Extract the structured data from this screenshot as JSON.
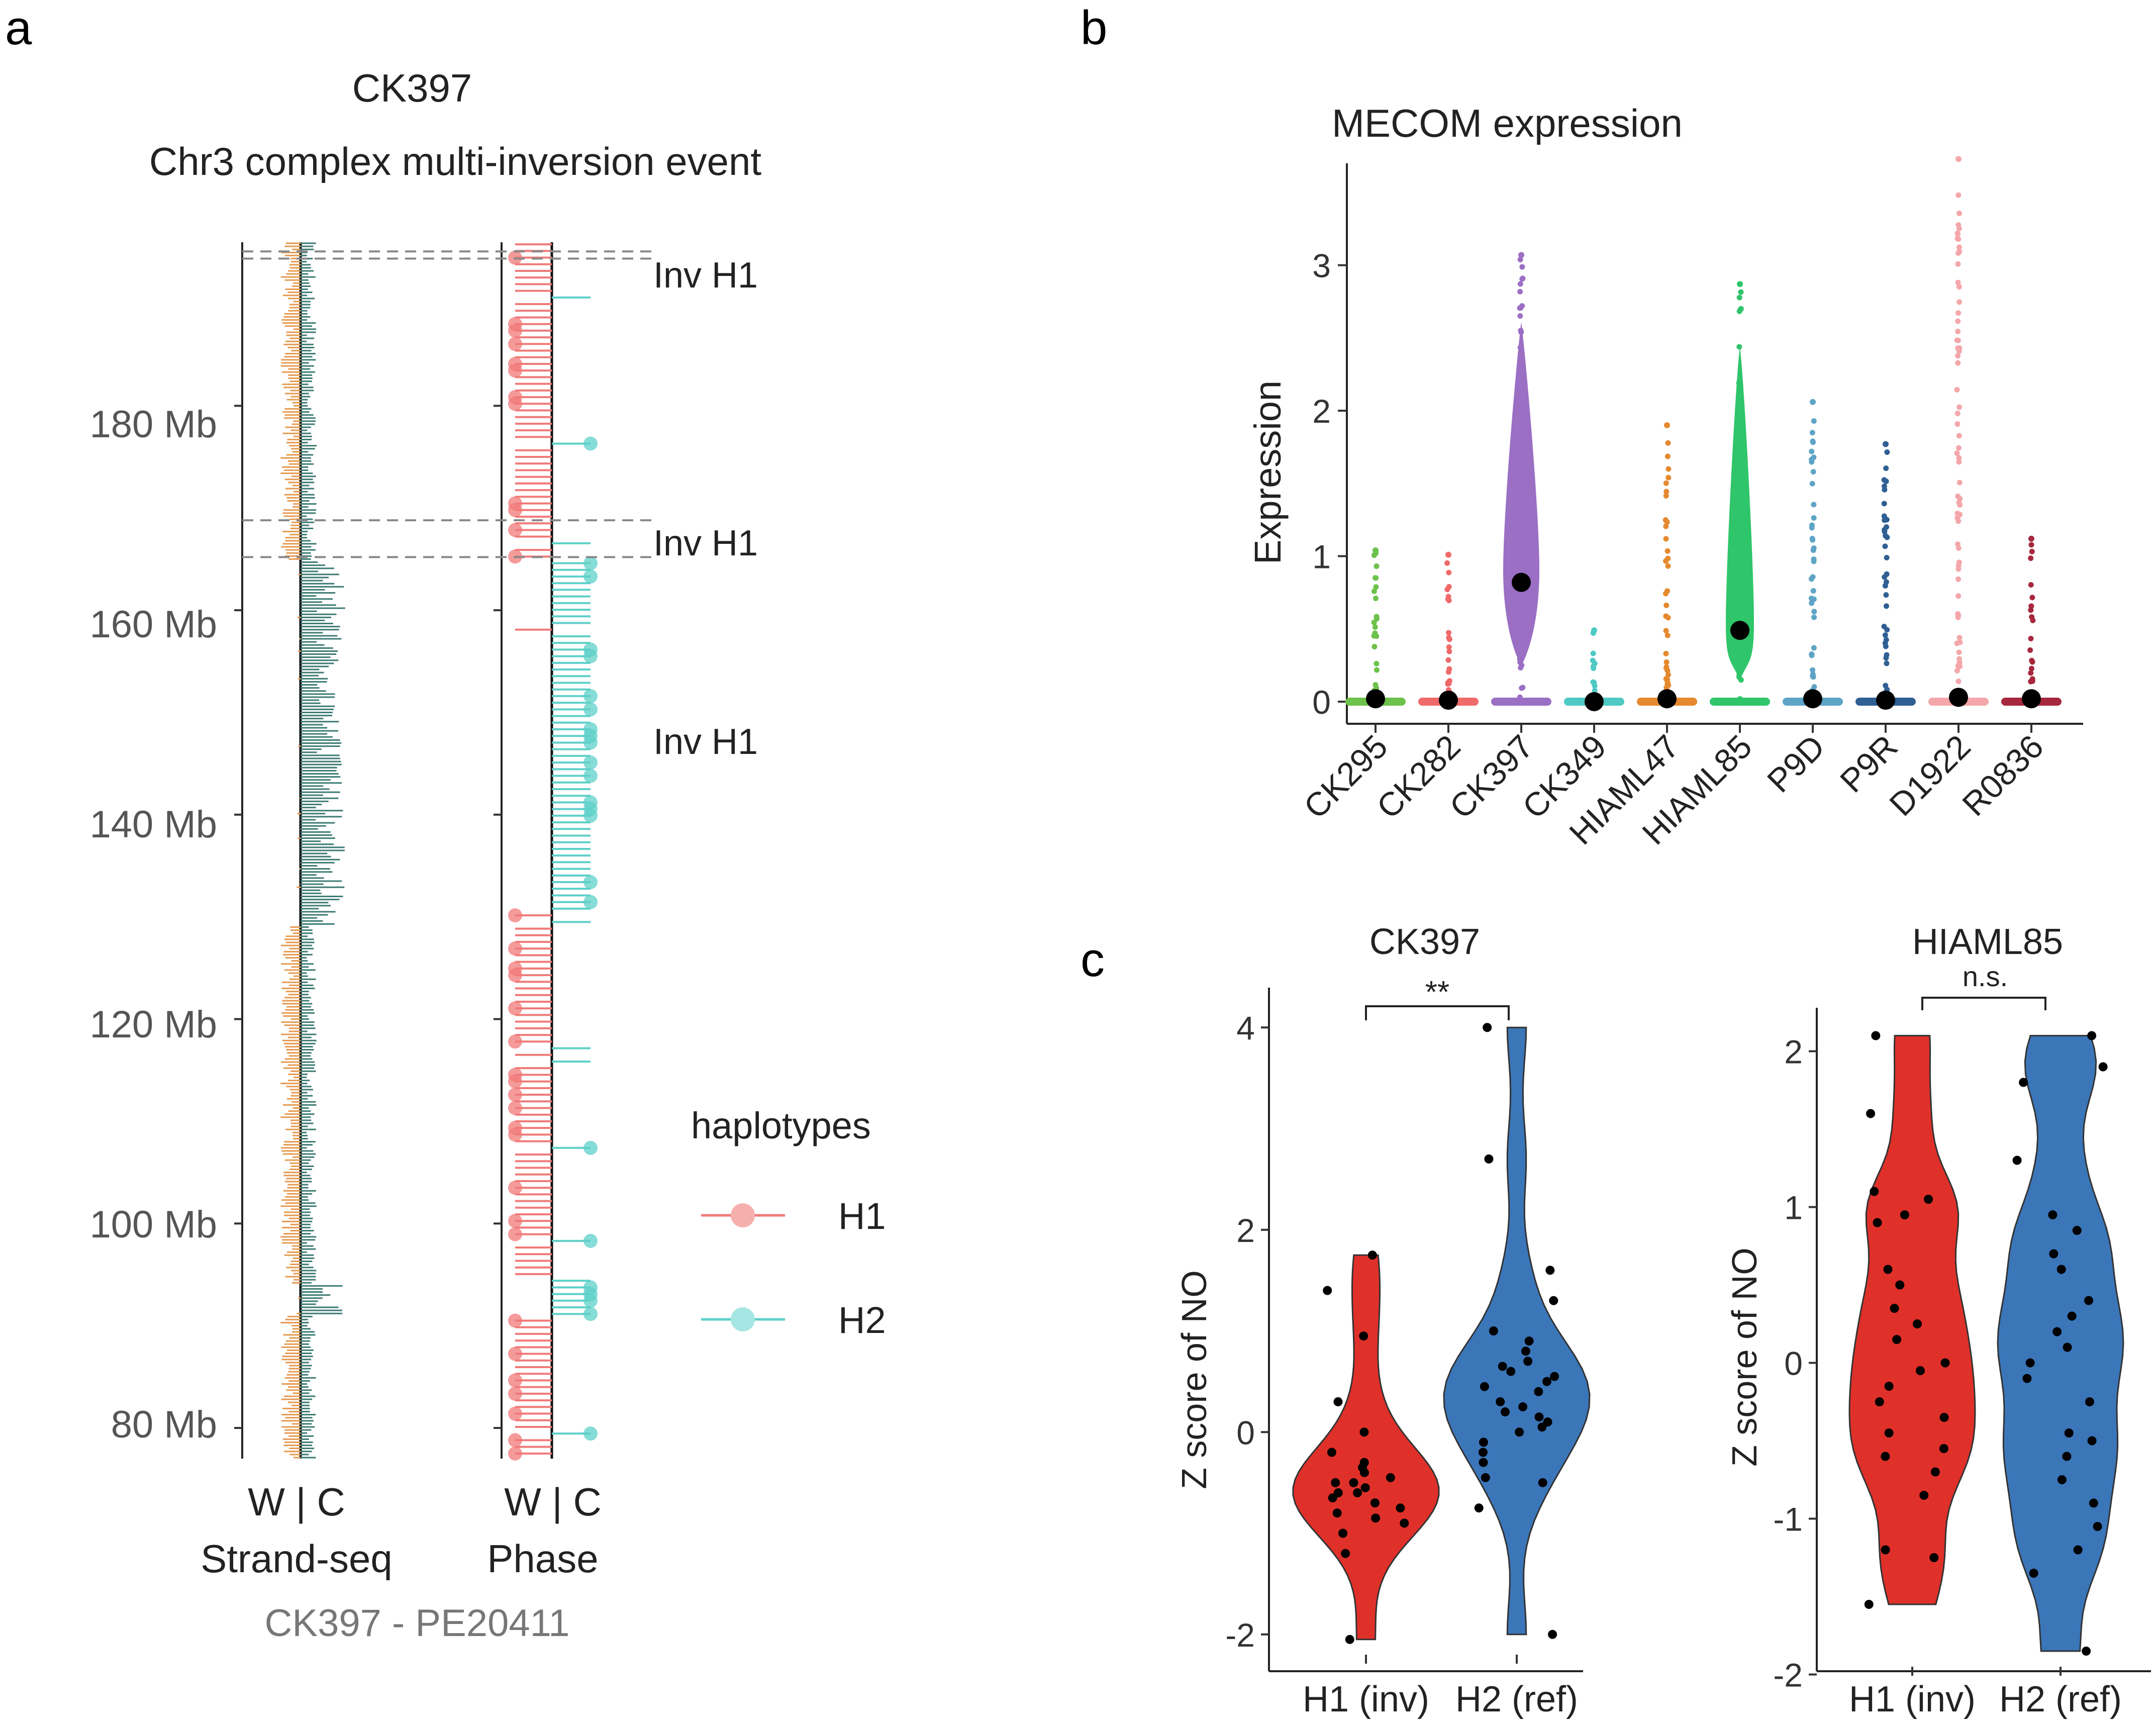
{
  "panels": {
    "a": "a",
    "b": "b",
    "c": "c"
  },
  "panel_a": {
    "title_line1": "CK397",
    "title_line2": "Chr3 complex multi-inversion event",
    "y_ticks": [
      "180 Mb",
      "160 Mb",
      "140 Mb",
      "120 Mb",
      "100 Mb",
      "80 Mb"
    ],
    "track_labels": [
      "W | C",
      "W | C"
    ],
    "track_names": [
      "Strand-seq",
      "Phase"
    ],
    "inv_labels": [
      "Inv H1",
      "Inv H1",
      "Inv H1"
    ],
    "caption": "CK397 - PE20411",
    "legend_title": "haplotypes",
    "legend_items": [
      "H1",
      "H2"
    ]
  },
  "chart_data": [
    {
      "type": "ideogram",
      "panel": "a",
      "ylim_mb": [
        77,
        196
      ],
      "y_ticks_mb": [
        180,
        160,
        140,
        120,
        100,
        80
      ],
      "inversions_mb": [
        [
          194.4,
          195.1
        ],
        [
          165.2,
          168.8
        ]
      ],
      "h1_segments_mb": [
        [
          77,
          91
        ],
        [
          94,
          129
        ],
        [
          165,
          196
        ]
      ],
      "h2_segments_mb": [
        [
          91,
          94
        ],
        [
          129,
          165
        ]
      ],
      "colors": {
        "watson": "#e59a50",
        "crick": "#3e7b74",
        "H1": "#f07a78",
        "H2": "#5ed0c8"
      }
    },
    {
      "type": "scatter",
      "panel": "b",
      "title": "MECOM expression",
      "ylabel": "Expression",
      "ylim": [
        0,
        3.7
      ],
      "y_ticks": [
        "0",
        "1",
        "2",
        "3"
      ],
      "categories": [
        "CK295",
        "CK282",
        "CK397",
        "CK349",
        "HIAML47",
        "HIAML85",
        "P9D",
        "P9R",
        "D1922",
        "R0836"
      ],
      "means": [
        0.02,
        0.01,
        0.82,
        0.0,
        0.02,
        0.49,
        0.02,
        0.01,
        0.03,
        0.02
      ],
      "max_values": [
        1.04,
        1.01,
        3.07,
        0.49,
        1.9,
        2.87,
        2.06,
        1.77,
        3.73,
        1.12
      ],
      "colors": [
        "#6cc24a",
        "#f06a6a",
        "#9b6fc4",
        "#4fc9c4",
        "#e5892e",
        "#2fc56a",
        "#5ea4c6",
        "#2f5f93",
        "#f4a7aa",
        "#a6283e"
      ]
    },
    {
      "type": "violin",
      "panel": "c",
      "title": "CK397",
      "ylabel": "Z score of NO",
      "ylim": [
        -2.2,
        4.2
      ],
      "y_ticks": [
        "-2",
        "0",
        "2",
        "4"
      ],
      "categories": [
        "H1 (inv)",
        "H2 (ref)"
      ],
      "significance": "**",
      "points": [
        [
          -0.5,
          -0.6,
          -0.8,
          -0.7,
          -0.45,
          -0.9,
          -0.3,
          -1.0,
          -0.2,
          -0.55,
          -0.65,
          0.0,
          0.3,
          1.4,
          1.75,
          0.95,
          -1.2,
          -2.05,
          -0.35,
          -0.75,
          -0.6,
          -0.85,
          -0.5,
          -0.4
        ],
        [
          0.4,
          0.2,
          0.1,
          0.6,
          -0.2,
          0.8,
          1.3,
          0.5,
          -0.5,
          0.9,
          1.0,
          2.7,
          4.0,
          0.3,
          -0.1,
          -0.3,
          0.7,
          0.0,
          -2.0,
          0.55,
          -0.75,
          1.6,
          0.45,
          0.15,
          0.25,
          -0.45,
          0.65,
          0.05
        ]
      ],
      "colors": [
        "#e0302a",
        "#3b76b9"
      ]
    },
    {
      "type": "violin",
      "panel": "c",
      "title": "HIAML85",
      "ylabel": "Z score of NO",
      "ylim": [
        -1.95,
        2.25
      ],
      "y_ticks": [
        "-2",
        "-1",
        "0",
        "1",
        "2"
      ],
      "categories": [
        "H1 (inv)",
        "H2 (ref)"
      ],
      "significance": "n.s.",
      "points": [
        [
          2.1,
          1.6,
          1.1,
          1.05,
          0.95,
          0.9,
          0.6,
          0.5,
          0.35,
          0.25,
          0.0,
          -0.15,
          -0.25,
          -0.35,
          -0.45,
          -0.55,
          -0.6,
          -0.7,
          -0.85,
          -1.2,
          -1.25,
          -1.55,
          0.15,
          -0.05
        ],
        [
          2.1,
          1.9,
          1.8,
          1.3,
          0.95,
          0.85,
          0.6,
          0.3,
          0.2,
          0.0,
          -0.25,
          -0.45,
          -0.6,
          -0.75,
          -0.9,
          -1.05,
          -1.2,
          -1.35,
          -1.85,
          0.4,
          -0.1,
          0.7,
          -0.5,
          0.1
        ]
      ],
      "colors": [
        "#e0302a",
        "#3b76b9"
      ]
    }
  ],
  "panel_b": {
    "title": "MECOM expression",
    "ylabel": "Expression",
    "y_ticks": [
      "0",
      "1",
      "2",
      "3"
    ],
    "x_labels": [
      "CK295",
      "CK282",
      "CK397",
      "CK349",
      "HIAML47",
      "HIAML85",
      "P9D",
      "P9R",
      "D1922",
      "R0836"
    ]
  },
  "panel_c": {
    "left": {
      "title": "CK397",
      "ylabel": "Z score of NO",
      "y_ticks": [
        "-2",
        "0",
        "2",
        "4"
      ],
      "x_labels": [
        "H1 (inv)",
        "H2 (ref)"
      ],
      "significance": "**"
    },
    "right": {
      "title": "HIAML85",
      "ylabel": "Z score of NO",
      "y_ticks": [
        "-2",
        "-1",
        "0",
        "1",
        "2"
      ],
      "x_labels": [
        "H1 (inv)",
        "H2 (ref)"
      ],
      "significance": "n.s."
    }
  }
}
